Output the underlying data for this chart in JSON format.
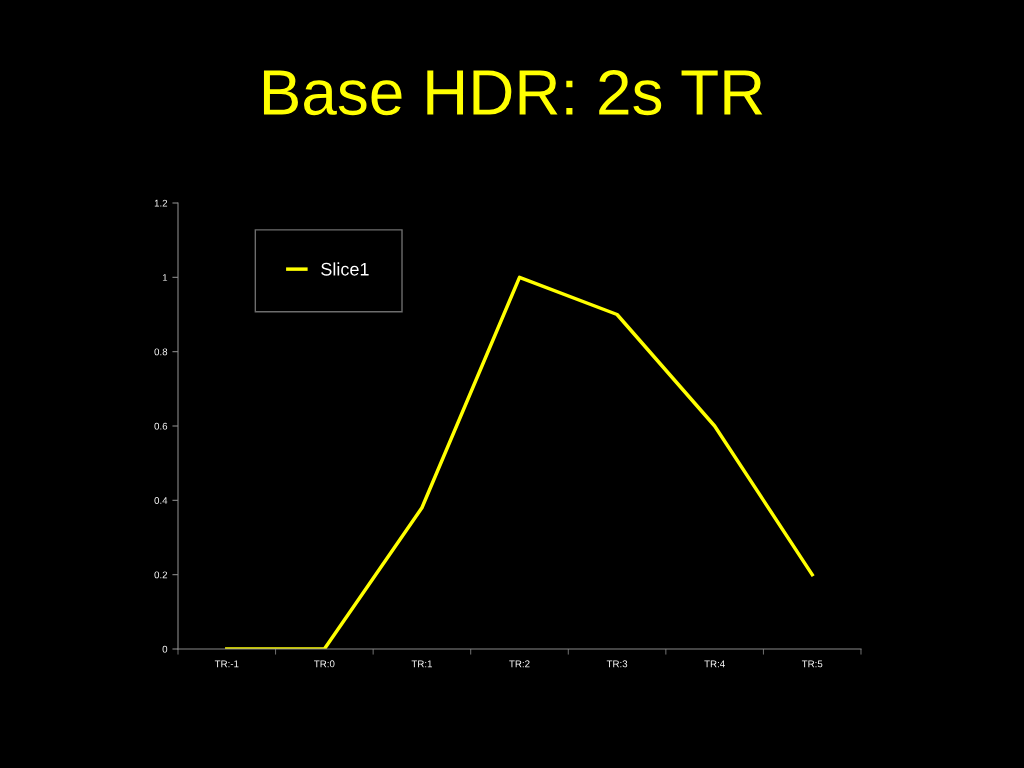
{
  "chart_data": {
    "type": "line",
    "title": "Base HDR: 2s TR",
    "categories": [
      "TR:-1",
      "TR:0",
      "TR:1",
      "TR:2",
      "TR:3",
      "TR:4",
      "TR:5"
    ],
    "series": [
      {
        "name": "Slice1",
        "color": "#ffff00",
        "values": [
          0,
          0,
          0.38,
          1,
          0.9,
          0.6,
          0.2
        ]
      }
    ],
    "ylim": [
      0,
      1.2
    ],
    "yticks": [
      0,
      0.2,
      0.4,
      0.6,
      0.8,
      1,
      1.2
    ],
    "grid": false,
    "legend": "top left",
    "marker": "none",
    "line_style": "solid"
  }
}
